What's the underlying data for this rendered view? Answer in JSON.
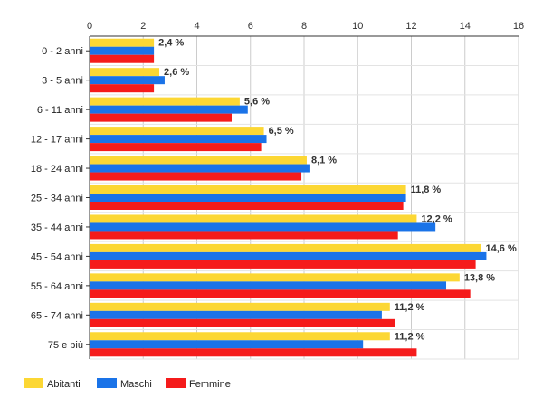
{
  "chart_data": {
    "type": "bar",
    "orientation": "horizontal",
    "categories": [
      "0 - 2 anni",
      "3 - 5 anni",
      "6 - 11 anni",
      "12 - 17 anni",
      "18 - 24 anni",
      "25 - 34 anni",
      "35 - 44 anni",
      "45 - 54 anni",
      "55 - 64 anni",
      "65 - 74 anni",
      "75 e più"
    ],
    "series": [
      {
        "name": "Abitanti",
        "color": "#fcd734",
        "values": [
          2.4,
          2.6,
          5.6,
          6.5,
          8.1,
          11.8,
          12.2,
          14.6,
          13.8,
          11.2,
          11.2
        ]
      },
      {
        "name": "Maschi",
        "color": "#1a73e8",
        "values": [
          2.4,
          2.8,
          5.9,
          6.6,
          8.2,
          11.8,
          12.9,
          14.8,
          13.3,
          10.9,
          10.2
        ]
      },
      {
        "name": "Femmine",
        "color": "#f51b1b",
        "values": [
          2.4,
          2.4,
          5.3,
          6.4,
          7.9,
          11.7,
          11.5,
          14.4,
          14.2,
          11.4,
          12.2
        ]
      }
    ],
    "data_labels": [
      "2,4 %",
      "2,6 %",
      "5,6 %",
      "6,5 %",
      "8,1 %",
      "11,8 %",
      "12,2 %",
      "14,6 %",
      "13,8 %",
      "11,2 %",
      "11,2 %"
    ],
    "x_ticks": [
      "0",
      "2",
      "4",
      "6",
      "8",
      "10",
      "12",
      "14",
      "16"
    ],
    "xlim": [
      0,
      16
    ],
    "x_axis_position": "top",
    "grid": true,
    "legend_position": "bottom-left",
    "title": "",
    "xlabel": "",
    "ylabel": ""
  }
}
